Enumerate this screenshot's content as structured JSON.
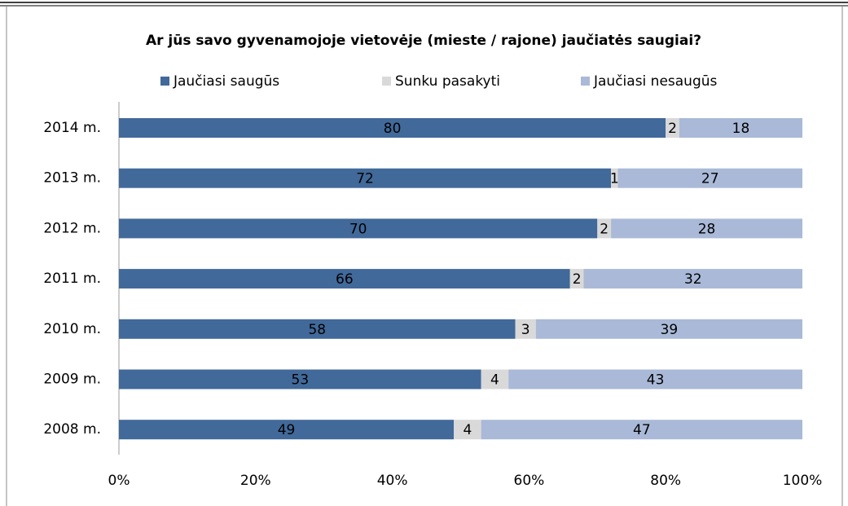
{
  "chart_data": {
    "type": "stacked-bar-horizontal",
    "title": "Ar jūs savo gyvenamojoje vietovėje (mieste / rajone) jaučiatės saugiai?",
    "categories": [
      "2014 m.",
      "2013 m.",
      "2012 m.",
      "2011 m.",
      "2010 m.",
      "2009 m.",
      "2008 m."
    ],
    "series": [
      {
        "name": "Jaučiasi saugūs",
        "color": "#41699a",
        "values": [
          80,
          72,
          70,
          66,
          58,
          53,
          49
        ]
      },
      {
        "name": "Sunku pasakyti",
        "color": "#d9d9d9",
        "values": [
          2,
          1,
          2,
          2,
          3,
          4,
          4
        ]
      },
      {
        "name": "Jaučiasi nesaugūs",
        "color": "#a9b9d7",
        "values": [
          18,
          27,
          28,
          32,
          39,
          43,
          47
        ]
      }
    ],
    "xlim": [
      0,
      100
    ],
    "xticks": [
      {
        "value": 0,
        "label": "0%"
      },
      {
        "value": 20,
        "label": "20%"
      },
      {
        "value": 40,
        "label": "40%"
      },
      {
        "value": 60,
        "label": "60%"
      },
      {
        "value": 80,
        "label": "80%"
      },
      {
        "value": 100,
        "label": "100%"
      }
    ],
    "legend": "top"
  }
}
